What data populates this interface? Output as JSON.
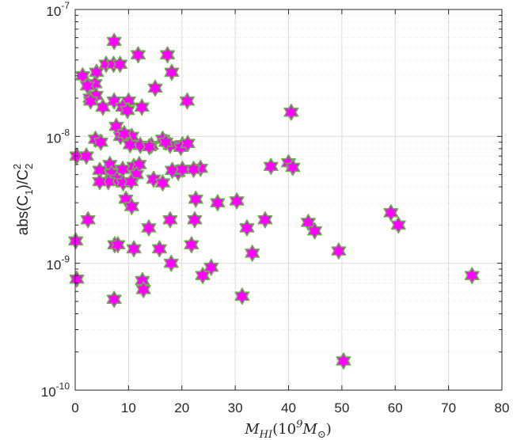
{
  "chart_data": {
    "type": "scatter",
    "title": "",
    "xlabel": {
      "parts": [
        {
          "text": "M",
          "style": "italic"
        },
        {
          "text": "HI",
          "style": "sub"
        },
        {
          "text": "(10",
          "style": "normal"
        },
        {
          "text": "9",
          "style": "sup"
        },
        {
          "text": "M",
          "style": "italic"
        },
        {
          "text": "⊙",
          "style": "sub"
        },
        {
          "text": ")",
          "style": "normal"
        }
      ]
    },
    "ylabel": {
      "parts": [
        {
          "text": "abs(C",
          "style": "normal"
        },
        {
          "text": "1",
          "style": "sub"
        },
        {
          "text": ")/C",
          "style": "normal"
        },
        {
          "text": "2",
          "style": "sup"
        },
        {
          "text": "2",
          "style": "sub"
        }
      ]
    },
    "xlim": [
      0,
      80
    ],
    "ylim": [
      1e-10,
      1e-07
    ],
    "yscale": "log",
    "x_ticks": [
      "0",
      "10",
      "20",
      "30",
      "40",
      "50",
      "60",
      "70",
      "80"
    ],
    "y_ticks": [
      {
        "base": "10",
        "exp": "-10"
      },
      {
        "base": "10",
        "exp": "-9"
      },
      {
        "base": "10",
        "exp": "-8"
      },
      {
        "base": "10",
        "exp": "-7"
      }
    ],
    "grid": true,
    "minor_grid": true,
    "marker": {
      "shape": "hexagram",
      "fill": "#ff00ff",
      "edge": "#6ab04c"
    },
    "colors": {
      "grid": "#dcdcdc",
      "axis": "#262626"
    },
    "x": [
      7.3,
      11.8,
      17.3,
      1.4,
      5.8,
      7.2,
      4.0,
      8.4,
      3.7,
      18.1,
      2.3,
      15.0,
      2.8,
      5.2,
      3.9,
      7.3,
      10.0,
      21.0,
      2.9,
      8.9,
      12.5,
      40.5,
      7.7,
      9.8,
      16.4,
      10.6,
      8.5,
      9.2,
      3.8,
      14.3,
      17.8,
      20.1,
      0.3,
      2.1,
      19.8,
      4.8,
      12.2,
      10.3,
      13.9,
      6.5,
      11.0,
      21.1,
      17.0,
      19.3,
      18.2,
      4.6,
      6.8,
      12.0,
      11.5,
      8.9,
      7.8,
      23.5,
      6.2,
      14.7,
      9.0,
      36.7,
      40.0,
      40.8,
      16.4,
      10.5,
      22.2,
      20.1,
      26.7,
      30.3,
      4.6,
      9.5,
      22.6,
      35.6,
      59.2,
      2.4,
      10.6,
      32.2,
      43.7,
      17.8,
      22.4,
      0.1,
      60.6,
      44.9,
      13.8,
      7.4,
      8.0,
      11.0,
      21.8,
      33.2,
      49.4,
      15.8,
      18.0,
      25.5,
      12.6,
      0.3,
      23.9,
      74.4,
      12.8,
      7.3,
      31.3,
      50.3
    ],
    "y": [
      5.6e-08,
      4.4e-08,
      4.4e-08,
      3e-08,
      3.7e-08,
      3.7e-08,
      3.2e-08,
      3.7e-08,
      2.6e-08,
      3.2e-08,
      2.5e-08,
      2.4e-08,
      2e-08,
      1.7e-08,
      2.1e-08,
      1.9e-08,
      1.9e-08,
      1.9e-08,
      1.9e-08,
      1.7e-08,
      1.7e-08,
      1.55e-08,
      1.2e-08,
      1.6e-08,
      9.5e-09,
      1e-08,
      1e-08,
      1.05e-08,
      9.5e-09,
      8.5e-09,
      8.5e-09,
      8.6e-09,
      7e-09,
      7e-09,
      8.2e-09,
      9e-09,
      8.5e-09,
      8.6e-09,
      8.3e-09,
      6e-09,
      5.8e-09,
      8.8e-09,
      9e-09,
      5.2e-09,
      5.4e-09,
      5.4e-09,
      5.1e-09,
      6e-09,
      5e-09,
      5.5e-09,
      4.6e-09,
      5.6e-09,
      4.4e-09,
      4.6e-09,
      4.3e-09,
      5.8e-09,
      6.2e-09,
      5.7e-09,
      4.3e-09,
      4.4e-09,
      5.5e-09,
      5.5e-09,
      3e-09,
      3.1e-09,
      4.4e-09,
      3.2e-09,
      3.2e-09,
      2.2e-09,
      2.5e-09,
      2.2e-09,
      2.8e-09,
      1.9e-09,
      2.1e-09,
      2.2e-09,
      2.2e-09,
      1.5e-09,
      2e-09,
      1.8e-09,
      1.9e-09,
      1.4e-09,
      1.4e-09,
      1.3e-09,
      1.4e-09,
      1.2e-09,
      1.25e-09,
      1.3e-09,
      1e-09,
      9.3e-10,
      7.3e-10,
      7.5e-10,
      8e-10,
      8e-10,
      6.2e-10,
      5.2e-10,
      5.5e-10,
      1.7e-10
    ]
  }
}
